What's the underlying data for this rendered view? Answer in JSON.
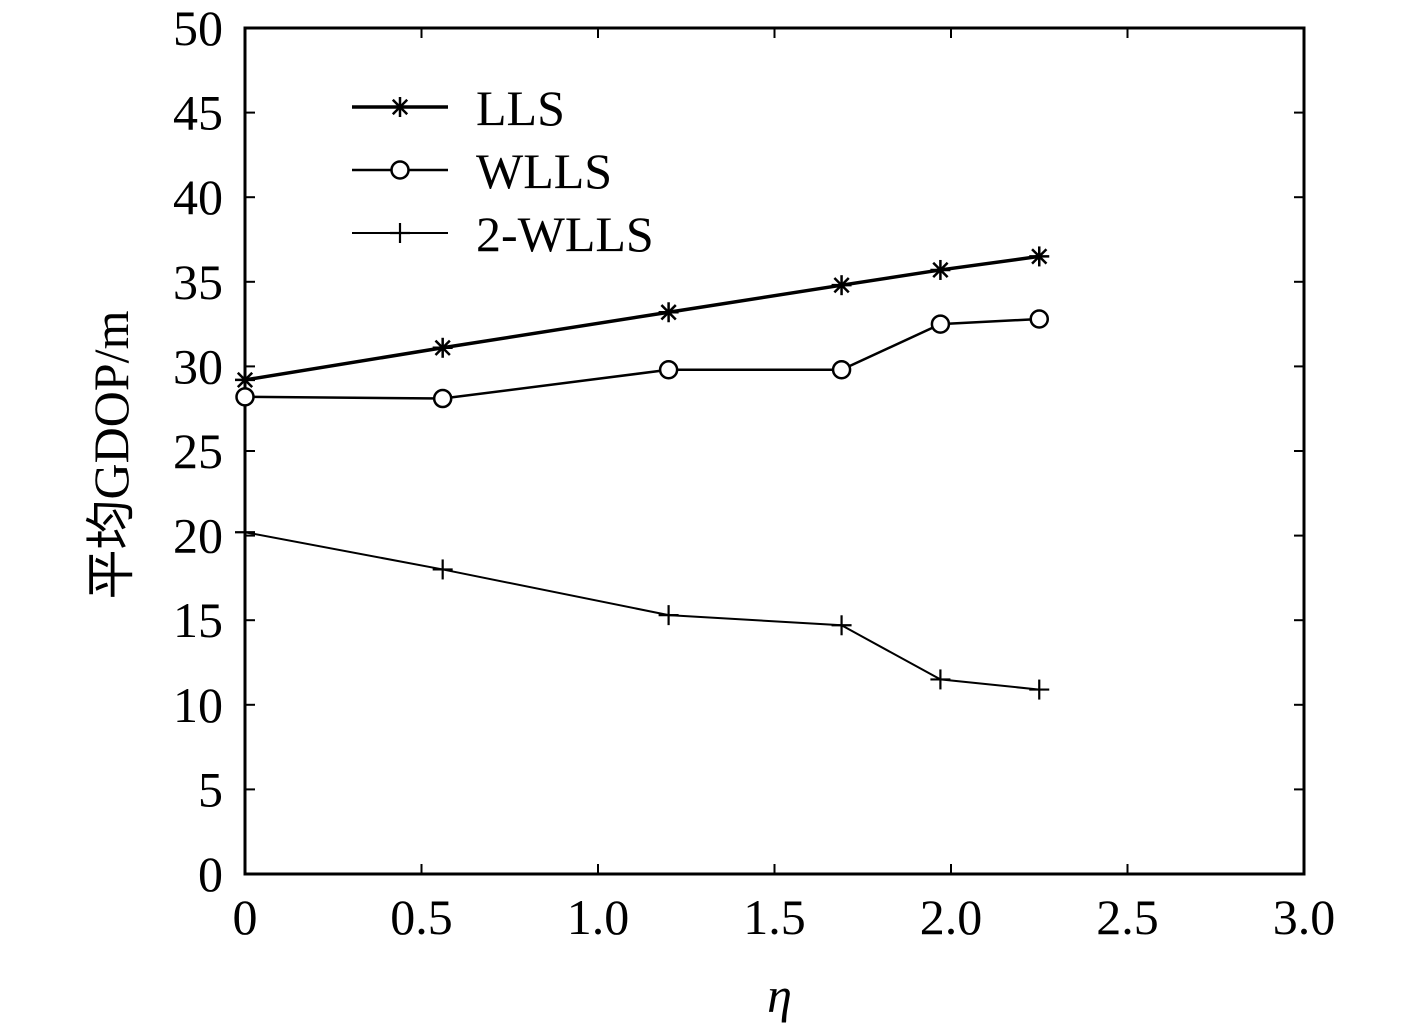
{
  "chart_data": {
    "type": "line",
    "title": "",
    "xlabel": "η",
    "ylabel": "平均GDOP/m",
    "xlim": [
      0,
      3.0
    ],
    "ylim": [
      0,
      50
    ],
    "xticks": [
      "0",
      "0.5",
      "1.0",
      "1.5",
      "2.0",
      "2.5",
      "3.0"
    ],
    "yticks": [
      "0",
      "5",
      "10",
      "15",
      "20",
      "25",
      "30",
      "35",
      "40",
      "45",
      "50"
    ],
    "grid": false,
    "legend_position": "top-left",
    "x": [
      0,
      0.56,
      1.2,
      1.69,
      1.97,
      2.25
    ],
    "series": [
      {
        "name": "LLS",
        "marker": "asterisk",
        "values": [
          29.2,
          31.1,
          33.2,
          34.8,
          35.7,
          36.5
        ]
      },
      {
        "name": "WLLS",
        "marker": "circle",
        "values": [
          28.2,
          28.1,
          29.8,
          29.8,
          32.5,
          32.8
        ]
      },
      {
        "name": "2-WLLS",
        "marker": "plus",
        "values": [
          20.2,
          18.0,
          15.3,
          14.7,
          11.5,
          10.9
        ]
      }
    ]
  }
}
